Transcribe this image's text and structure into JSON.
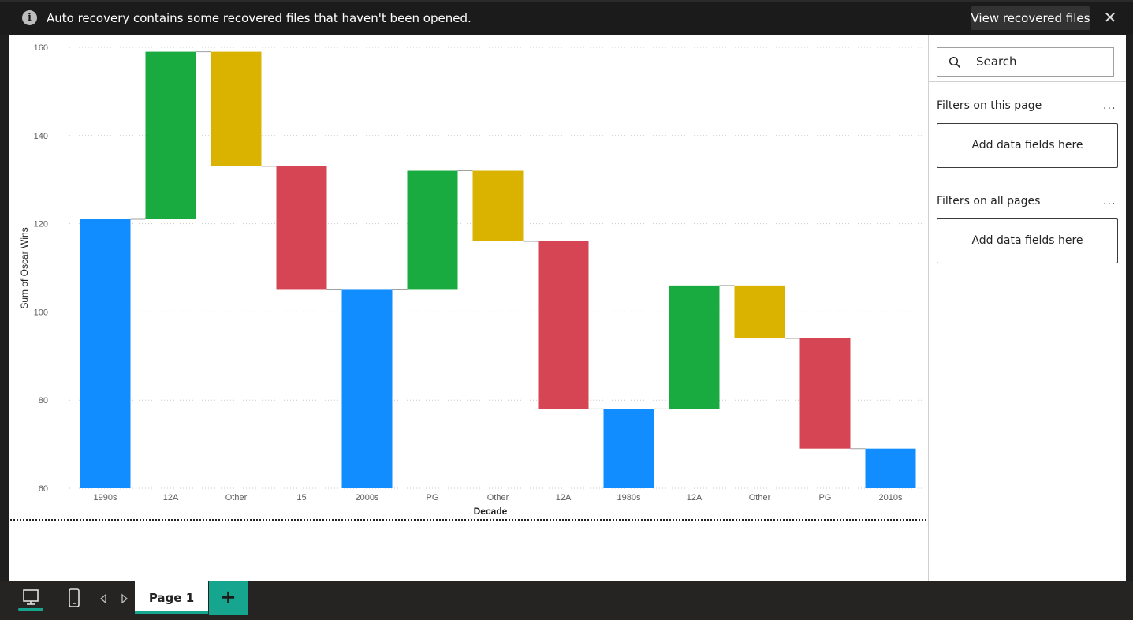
{
  "notification": {
    "message": "Auto recovery contains some recovered files that haven't been opened.",
    "action_label": "View recovered files",
    "info_glyph": "i",
    "close_glyph": "✕",
    "icons": [
      "info-icon",
      "close-icon"
    ]
  },
  "filters": {
    "search_placeholder": "Search",
    "section_page": "Filters on this page",
    "section_all": "Filters on all pages",
    "more_glyph": "...",
    "drop_zone_label": "Add data fields here"
  },
  "pages": {
    "active_tab": "Page 1",
    "add_glyph": "+",
    "icons": [
      "desktop-view-icon",
      "mobile-view-icon",
      "chevron-left-icon",
      "chevron-right-icon",
      "add-icon"
    ]
  },
  "colors": {
    "total": "#118dff",
    "increase": "#1aab40",
    "decrease": "#d64554",
    "other": "#d9b300",
    "accent": "#16a58f"
  },
  "chart_data": {
    "type": "waterfall",
    "xlabel": "Decade",
    "ylabel": "Sum of Oscar Wins",
    "ylim": [
      60,
      160
    ],
    "yticks": [
      60,
      80,
      100,
      120,
      140,
      160
    ],
    "grid": true,
    "bars": [
      {
        "label": "1990s",
        "kind": "total",
        "start": 60,
        "end": 121
      },
      {
        "label": "12A",
        "kind": "increase",
        "start": 121,
        "end": 159
      },
      {
        "label": "Other",
        "kind": "other",
        "start": 159,
        "end": 133
      },
      {
        "label": "15",
        "kind": "decrease",
        "start": 133,
        "end": 105
      },
      {
        "label": "2000s",
        "kind": "total",
        "start": 60,
        "end": 105
      },
      {
        "label": "PG",
        "kind": "increase",
        "start": 105,
        "end": 132
      },
      {
        "label": "Other",
        "kind": "other",
        "start": 132,
        "end": 116
      },
      {
        "label": "12A",
        "kind": "decrease",
        "start": 116,
        "end": 78
      },
      {
        "label": "1980s",
        "kind": "total",
        "start": 60,
        "end": 78
      },
      {
        "label": "12A",
        "kind": "increase",
        "start": 78,
        "end": 106
      },
      {
        "label": "Other",
        "kind": "other",
        "start": 106,
        "end": 94
      },
      {
        "label": "PG",
        "kind": "decrease",
        "start": 94,
        "end": 69
      },
      {
        "label": "2010s",
        "kind": "total",
        "start": 60,
        "end": 69
      }
    ]
  }
}
